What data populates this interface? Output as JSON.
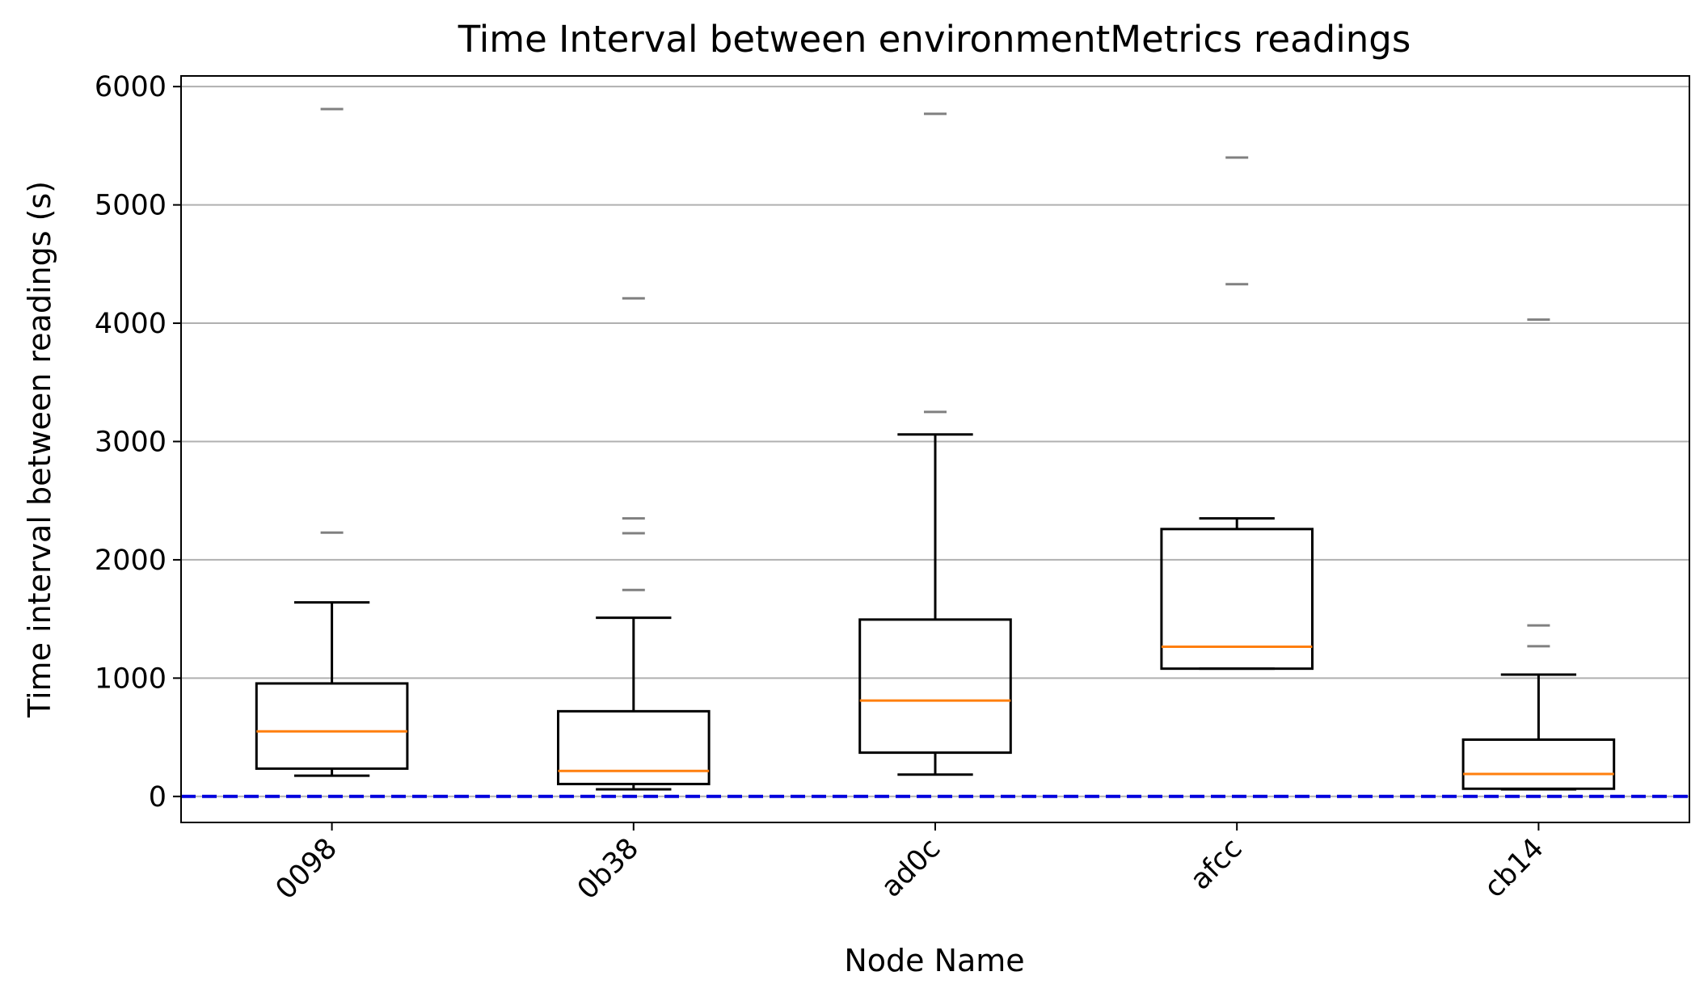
{
  "chart_data": {
    "type": "box",
    "title": "Time Interval between environmentMetrics readings",
    "xlabel": "Node Name",
    "ylabel": "Time interval between readings (s)",
    "ylim": [
      -220,
      6090
    ],
    "yticks": [
      0,
      1000,
      2000,
      3000,
      4000,
      5000,
      6000
    ],
    "grid": "y",
    "reference_line": {
      "y": 0,
      "style": "dashed",
      "color": "#0000dd"
    },
    "categories": [
      "0098",
      "0b38",
      "ad0c",
      "afcc",
      "cb14"
    ],
    "boxes": [
      {
        "category": "0098",
        "whisker_low": 175,
        "q1": 235,
        "median": 550,
        "q3": 955,
        "whisker_high": 1640,
        "outliers": [
          2230,
          5810
        ]
      },
      {
        "category": "0b38",
        "whisker_low": 60,
        "q1": 105,
        "median": 215,
        "q3": 720,
        "whisker_high": 1510,
        "outliers": [
          1745,
          2225,
          2350,
          4210
        ]
      },
      {
        "category": "ad0c",
        "whisker_low": 185,
        "q1": 370,
        "median": 810,
        "q3": 1495,
        "whisker_high": 3060,
        "outliers": [
          3250,
          5770
        ]
      },
      {
        "category": "afcc",
        "whisker_low": 1080,
        "q1": 1080,
        "median": 1265,
        "q3": 2260,
        "whisker_high": 2350,
        "outliers": [
          4330,
          5400
        ]
      },
      {
        "category": "cb14",
        "whisker_low": 60,
        "q1": 65,
        "median": 190,
        "q3": 480,
        "whisker_high": 1030,
        "outliers": [
          1270,
          1445,
          4030
        ]
      }
    ],
    "colors": {
      "box": "#000000",
      "median": "#ff7f0e",
      "outlier": "#808080",
      "grid": "#b0b0b0",
      "reference": "#0000dd"
    }
  }
}
